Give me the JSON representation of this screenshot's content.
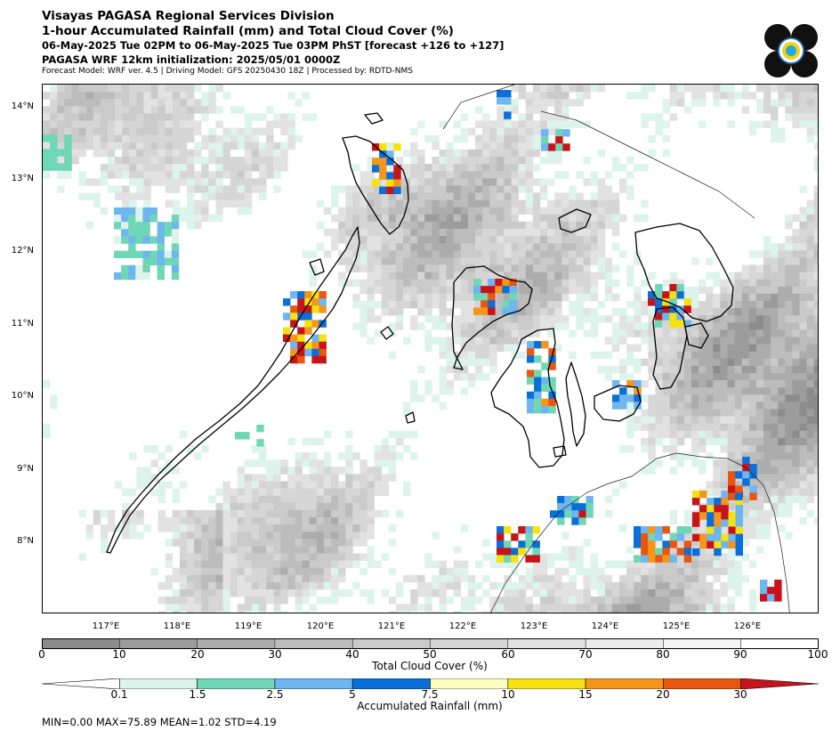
{
  "header": {
    "title": "Visayas PAGASA Regional Services Division",
    "subtitle": "1-hour Accumulated Rainfall (mm) and Total Cloud Cover (%)",
    "valid_time": "06-May-2025 Tue 02PM to 06-May-2025 Tue 03PM PhST [forecast +126 to +127]",
    "init": "PAGASA WRF 12km initialization: 2025/05/01 0000Z",
    "model_info": "Forecast Model: WRF ver. 4.5 | Driving Model: GFS 20250430 18Z | Processed by: RDTD-NMS"
  },
  "map": {
    "lat_labels": [
      "14°N",
      "13°N",
      "12°N",
      "11°N",
      "10°N",
      "9°N",
      "8°N"
    ],
    "lon_labels": [
      "117°E",
      "118°E",
      "119°E",
      "120°E",
      "121°E",
      "122°E",
      "123°E",
      "124°E",
      "125°E",
      "126°E"
    ],
    "extent": {
      "lon_min": 116.15,
      "lon_max": 126.98,
      "lat_min": 7.0,
      "lat_max": 14.3
    }
  },
  "cloud_colorbar": {
    "label": "Total Cloud Cover (%)",
    "ticks": [
      "0",
      "10",
      "20",
      "30",
      "40",
      "50",
      "60",
      "70",
      "80",
      "90",
      "100"
    ],
    "colors": [
      "#8c8c8c",
      "#9c9c9c",
      "#acacac",
      "#bcbcbc",
      "#cacaca",
      "#d6d6d6",
      "#e2e2e2",
      "#ececec",
      "#f5f5f5",
      "#ffffff"
    ]
  },
  "rain_colorbar": {
    "label": "Accumulated Rainfall (mm)",
    "ticks": [
      "0.1",
      "1.5",
      "2.5",
      "5",
      "7.5",
      "10",
      "15",
      "20",
      "30"
    ],
    "colors": [
      "#ffffff",
      "#ddf4ec",
      "#6fd7b5",
      "#6db6f0",
      "#0a6fd8",
      "#fffdc0",
      "#f5e20f",
      "#f5961a",
      "#e8560f",
      "#c8131b"
    ]
  },
  "stats": "MIN=0.00   MAX=75.89   MEAN=1.02   STD=4.19"
}
